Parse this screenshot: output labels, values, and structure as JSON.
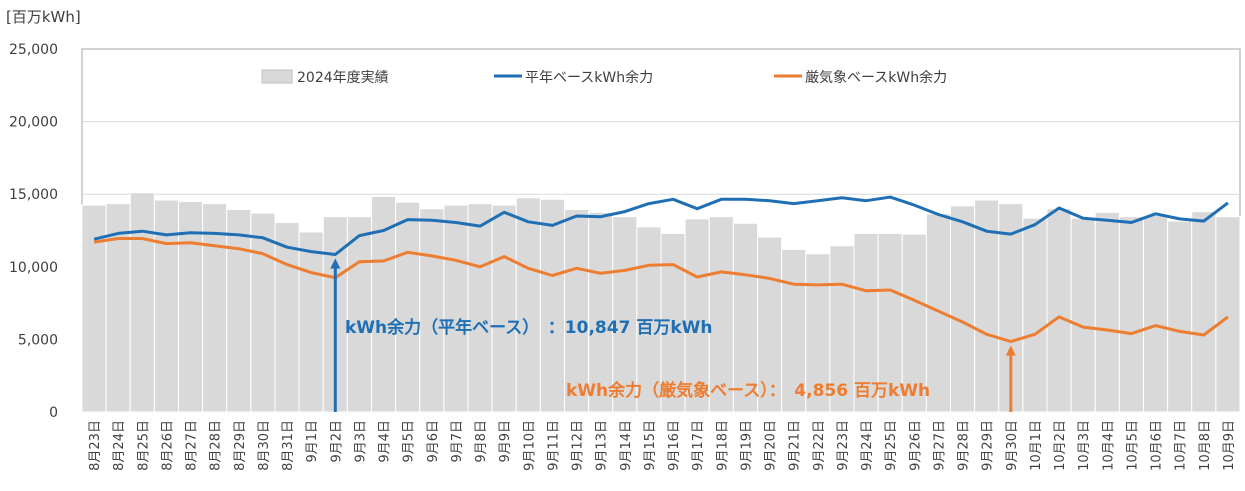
{
  "chart_data": {
    "type": "bar",
    "unit_label": "[百万kWh]",
    "ylim": [
      0,
      25000
    ],
    "yticks": [
      "0",
      "5,000",
      "10,000",
      "15,000",
      "20,000",
      "25,000"
    ],
    "grid": true,
    "legend_placement": "top",
    "categories": [
      "8月23日",
      "8月24日",
      "8月25日",
      "8月26日",
      "8月27日",
      "8月28日",
      "8月29日",
      "8月30日",
      "8月31日",
      "9月1日",
      "9月2日",
      "9月3日",
      "9月4日",
      "9月5日",
      "9月6日",
      "9月7日",
      "9月8日",
      "9月9日",
      "9月10日",
      "9月11日",
      "9月12日",
      "9月13日",
      "9月14日",
      "9月15日",
      "9月16日",
      "9月17日",
      "9月18日",
      "9月19日",
      "9月20日",
      "9月21日",
      "9月22日",
      "9月23日",
      "9月24日",
      "9月25日",
      "9月26日",
      "9月27日",
      "9月28日",
      "9月29日",
      "9月30日",
      "10月1日",
      "10月2日",
      "10月3日",
      "10月4日",
      "10月5日",
      "10月6日",
      "10月7日",
      "10月8日",
      "10月9日"
    ],
    "series": [
      {
        "name": "2024年度実績",
        "kind": "bar",
        "color": "#d9d9d9",
        "values": [
          14250,
          14350,
          15100,
          14600,
          14500,
          14350,
          13950,
          13700,
          13050,
          12400,
          13450,
          13450,
          14850,
          14450,
          14000,
          14250,
          14350,
          14250,
          14750,
          14650,
          13950,
          13750,
          13450,
          12750,
          12300,
          13300,
          13450,
          13000,
          12050,
          11200,
          10900,
          11450,
          12300,
          12300,
          12250,
          13650,
          14200,
          14600,
          14350,
          13350,
          14000,
          13350,
          13750,
          13450,
          13550,
          13150,
          13800,
          13450
        ]
      },
      {
        "name": "平年ベースkWh余力",
        "kind": "line",
        "color": "#1f6fb5",
        "values": [
          11900,
          12300,
          12450,
          12200,
          12350,
          12300,
          12200,
          12000,
          11350,
          11050,
          10847,
          12150,
          12500,
          13250,
          13200,
          13050,
          12800,
          13750,
          13100,
          12850,
          13500,
          13450,
          13800,
          14350,
          14650,
          14000,
          14650,
          14650,
          14550,
          14350,
          14550,
          14750,
          14550,
          14800,
          14250,
          13600,
          13100,
          12450,
          12250,
          12900,
          14050,
          13350,
          13200,
          13050,
          13650,
          13300,
          13150,
          14400
        ]
      },
      {
        "name": "厳気象ベースkWh余力",
        "kind": "line",
        "color": "#ed7d31",
        "values": [
          11700,
          11950,
          11950,
          11600,
          11650,
          11450,
          11250,
          10900,
          10150,
          9600,
          9250,
          10350,
          10400,
          11000,
          10750,
          10450,
          10000,
          10700,
          9900,
          9400,
          9900,
          9550,
          9750,
          10100,
          10150,
          9300,
          9650,
          9450,
          9200,
          8800,
          8750,
          8800,
          8350,
          8400,
          7700,
          6950,
          6200,
          5350,
          4856,
          5350,
          6550,
          5850,
          5650,
          5400,
          5950,
          5550,
          5300,
          6550
        ]
      }
    ],
    "annotations": [
      {
        "text": "kWh余力（平年ベース）　：10,847 百万kWh",
        "color": "#1f6fb5",
        "category": "9月2日",
        "value": 10847
      },
      {
        "text": "kWh余力（厳気象ベース）：　4,856 百万kWh",
        "color": "#ed7d31",
        "category": "9月30日",
        "value": 4856
      }
    ]
  }
}
